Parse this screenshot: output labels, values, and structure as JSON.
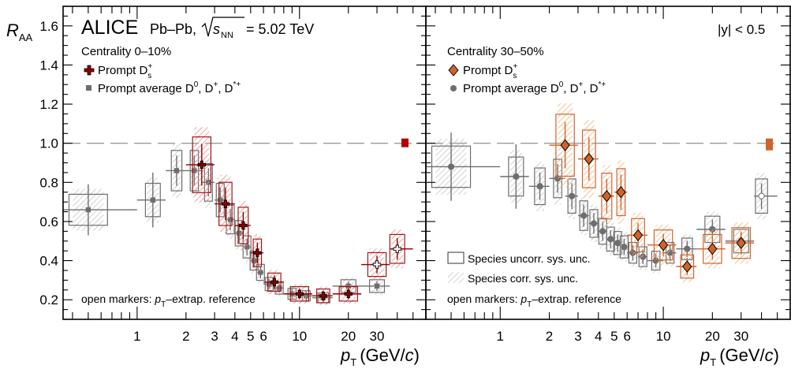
{
  "figure": {
    "experiment": "ALICE",
    "system": "Pb–Pb,",
    "energy_label": "s",
    "energy_sub": "NN",
    "energy_value": "= 5.02 TeV",
    "y_axis_main": "R",
    "y_axis_sub": "AA",
    "x_axis_p": "p",
    "x_axis_sub": "T",
    "x_axis_unit_pre": "(GeV/",
    "x_axis_unit_c": "c",
    "x_axis_unit_post": ")",
    "rapidity_label": "|y| < 0.5",
    "y_tick_labels": [
      "0.2",
      "0.4",
      "0.6",
      "0.8",
      "1.0",
      "1.2",
      "1.4",
      "1.6"
    ],
    "x_tick_labels": [
      "1",
      "2",
      "3",
      "4",
      "5",
      "6",
      "10",
      "20",
      "30"
    ]
  },
  "panels": [
    {
      "centrality": "Centrality 0–10%",
      "legend_ds": "Prompt D",
      "legend_avg": "Prompt average D",
      "legend_avg_rest": ", D",
      "legend_avg_rest2": ", D",
      "footnote_pre": "open markers: ",
      "footnote_post": "–extrap. reference"
    },
    {
      "centrality": "Centrality 30–50%",
      "legend_ds": "Prompt D",
      "legend_avg": "Prompt average D",
      "legend_avg_rest": ", D",
      "legend_avg_rest2": ", D",
      "legend_box_uncorr": "Species uncorr. sys. unc.",
      "legend_box_corr": "Species corr. sys. unc.",
      "footnote_pre": "open markers: ",
      "footnote_post": "–extrap. reference"
    }
  ],
  "colors": {
    "ds_central": "#8b0000",
    "ds_semi": "#d2622b",
    "avg": "#6e6e6e",
    "corr_red": "#f4a3a3",
    "corr_orange": "#f1c89a",
    "corr_grey": "#c4c4c4"
  },
  "chart_data": {
    "type": "scatter",
    "x_scale": "log",
    "xlim": [
      0.35,
      60
    ],
    "ylim": [
      0.1,
      1.7
    ],
    "reference_line": 1.0,
    "panels": [
      {
        "series": [
          {
            "name": "Prompt D_s+",
            "x": [
              2.5,
              3.5,
              4.5,
              5.5,
              7,
              10,
              14,
              20,
              30,
              40
            ],
            "y": [
              0.89,
              0.69,
              0.58,
              0.44,
              0.29,
              0.23,
              0.22,
              0.23,
              0.38,
              0.46
            ],
            "open": [
              false,
              false,
              false,
              false,
              false,
              false,
              false,
              false,
              true,
              true
            ]
          },
          {
            "name": "Prompt average D0, D+, D*+",
            "x": [
              0.5,
              1.25,
              1.75,
              2.25,
              2.75,
              3.25,
              3.75,
              4.25,
              4.75,
              5.25,
              5.75,
              6.5,
              7.5,
              9,
              11,
              14,
              20,
              30
            ],
            "y": [
              0.66,
              0.71,
              0.86,
              0.86,
              0.8,
              0.71,
              0.61,
              0.54,
              0.47,
              0.4,
              0.34,
              0.28,
              0.26,
              0.23,
              0.22,
              0.21,
              0.27,
              0.27
            ],
            "open": [
              false,
              false,
              false,
              false,
              false,
              false,
              false,
              false,
              false,
              false,
              false,
              false,
              false,
              false,
              false,
              false,
              false,
              false
            ]
          }
        ]
      },
      {
        "series": [
          {
            "name": "Prompt D_s+",
            "x": [
              2.5,
              3.5,
              4.5,
              5.5,
              7,
              10,
              14,
              20,
              30
            ],
            "y": [
              0.99,
              0.92,
              0.73,
              0.75,
              0.53,
              0.48,
              0.37,
              0.46,
              0.49
            ],
            "open": [
              false,
              false,
              false,
              false,
              false,
              false,
              false,
              false,
              false
            ]
          },
          {
            "name": "Prompt average D0, D+, D*+",
            "x": [
              0.5,
              1.25,
              1.75,
              2.25,
              2.75,
              3.25,
              3.75,
              4.25,
              4.75,
              5.25,
              5.75,
              6.5,
              7.5,
              9,
              11,
              14,
              20,
              30,
              40
            ],
            "y": [
              0.88,
              0.83,
              0.78,
              0.82,
              0.73,
              0.63,
              0.59,
              0.55,
              0.51,
              0.49,
              0.47,
              0.44,
              0.42,
              0.4,
              0.44,
              0.46,
              0.56,
              0.5,
              0.73
            ],
            "open": [
              false,
              false,
              false,
              false,
              false,
              false,
              false,
              false,
              false,
              false,
              false,
              false,
              false,
              false,
              false,
              false,
              false,
              false,
              true
            ]
          }
        ]
      }
    ]
  }
}
